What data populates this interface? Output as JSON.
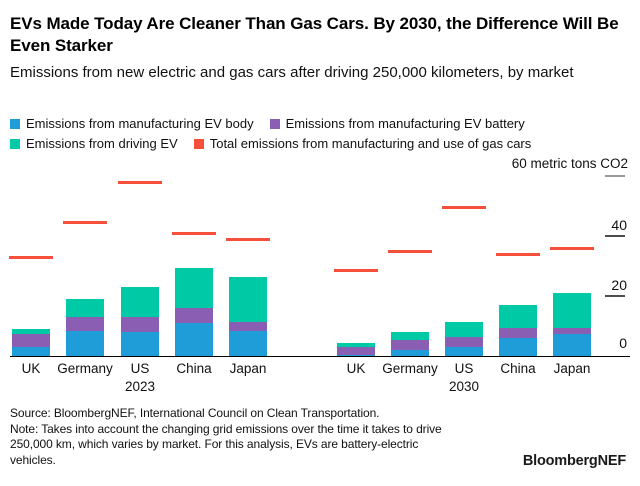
{
  "header": {
    "title": "EVs Made Today Are Cleaner Than Gas Cars. By 2030, the Difference Will Be Even Starker",
    "subtitle": "Emissions from new electric and gas cars after driving 250,000 kilometers, by market"
  },
  "legend": {
    "rows": [
      [
        {
          "key": "body",
          "label": "Emissions from manufacturing EV body",
          "color": "#1e9dd8"
        },
        {
          "key": "battery",
          "label": "Emissions from manufacturing EV battery",
          "color": "#8a5eb2"
        }
      ],
      [
        {
          "key": "driving",
          "label": "Emissions from driving EV",
          "color": "#00c9a5"
        },
        {
          "key": "gas",
          "label": "Total emissions from manufacturing and use of gas cars",
          "color": "#f6503c"
        }
      ]
    ]
  },
  "chart_data": {
    "type": "bar",
    "stacked": true,
    "title": "Emissions from new electric and gas cars after driving 250,000 kilometers, by market",
    "unit_label": "60 metric tons CO2",
    "ylabel": "metric tons CO2",
    "ylim": [
      0,
      60
    ],
    "yticks": [
      0,
      20,
      40,
      60
    ],
    "grid": false,
    "legend_position": "top",
    "colors": {
      "body": "#1e9dd8",
      "battery": "#8a5eb2",
      "driving": "#00c9a5",
      "gas": "#f6503c"
    },
    "groups": [
      {
        "year": "2023",
        "categories": [
          "UK",
          "Germany",
          "US",
          "China",
          "Japan"
        ],
        "series": [
          {
            "name": "Emissions from manufacturing EV body",
            "key": "body",
            "values": [
              3,
              8.5,
              8,
              11,
              8.5
            ]
          },
          {
            "name": "Emissions from manufacturing EV battery",
            "key": "battery",
            "values": [
              4.5,
              4.5,
              5,
              5,
              3
            ]
          },
          {
            "name": "Emissions from driving EV",
            "key": "driving",
            "values": [
              1.5,
              6,
              10,
              13.5,
              15
            ]
          },
          {
            "name": "Total emissions from manufacturing and use of gas cars",
            "key": "gas",
            "values": [
              33,
              44.5,
              58,
              41,
              39
            ]
          }
        ]
      },
      {
        "year": "2030",
        "categories": [
          "UK",
          "Germany",
          "US",
          "China",
          "Japan"
        ],
        "series": [
          {
            "name": "Emissions from manufacturing EV body",
            "key": "body",
            "values": [
              0.5,
              2,
              3,
              6,
              7.5
            ]
          },
          {
            "name": "Emissions from manufacturing EV battery",
            "key": "battery",
            "values": [
              2.5,
              3.5,
              3.5,
              3.5,
              2
            ]
          },
          {
            "name": "Emissions from driving EV",
            "key": "driving",
            "values": [
              1.5,
              2.5,
              5,
              7.5,
              11.5
            ]
          },
          {
            "name": "Total emissions from manufacturing and use of gas cars",
            "key": "gas",
            "values": [
              28.5,
              35,
              49.5,
              34,
              36
            ]
          }
        ]
      }
    ]
  },
  "footer": {
    "lines": [
      "Source: BloombergNEF, International Council on Clean Transportation.",
      "Note: Takes into account the changing grid emissions over the time it takes to drive",
      "250,000 km, which varies by market. For this analysis, EVs are battery-electric",
      "vehicles."
    ],
    "wordmark": "BloombergNEF"
  }
}
